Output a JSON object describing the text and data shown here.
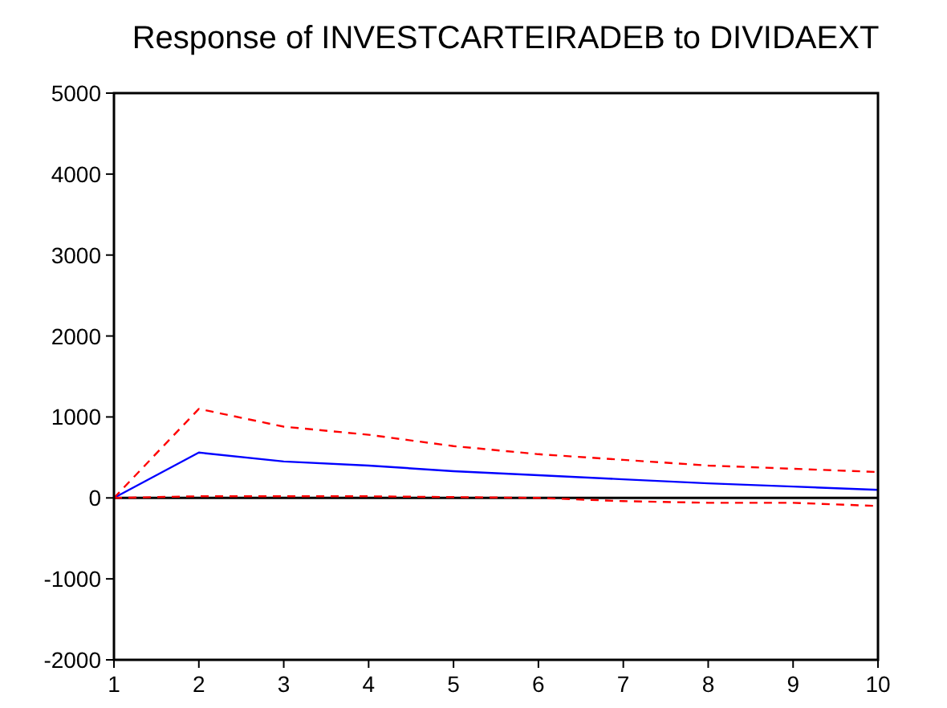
{
  "chart_data": {
    "type": "line",
    "title": "Response of INVESTCARTEIRADEB to DIVIDAEXT",
    "x": [
      1,
      2,
      3,
      4,
      5,
      6,
      7,
      8,
      9,
      10
    ],
    "xlim": [
      1,
      10
    ],
    "xticks": [
      1,
      2,
      3,
      4,
      5,
      6,
      7,
      8,
      9,
      10
    ],
    "ylim": [
      -2000,
      5000
    ],
    "yticks": [
      -2000,
      -1000,
      0,
      1000,
      2000,
      3000,
      4000,
      5000
    ],
    "series": [
      {
        "color": "#0000ff",
        "values": [
          0,
          560,
          450,
          400,
          330,
          280,
          230,
          180,
          140,
          100
        ],
        "line_style": "solid"
      },
      {
        "color": "#ff0000",
        "values": [
          0,
          1100,
          880,
          780,
          640,
          540,
          470,
          400,
          360,
          320
        ],
        "line_style": "dashed"
      },
      {
        "color": "#ff0000",
        "values": [
          0,
          20,
          20,
          20,
          10,
          0,
          -40,
          -60,
          -60,
          -100
        ],
        "line_style": "dashed"
      }
    ],
    "ref_lines": [
      {
        "axis": "y",
        "value": 0,
        "color": "#000000"
      }
    ],
    "grid": false
  }
}
